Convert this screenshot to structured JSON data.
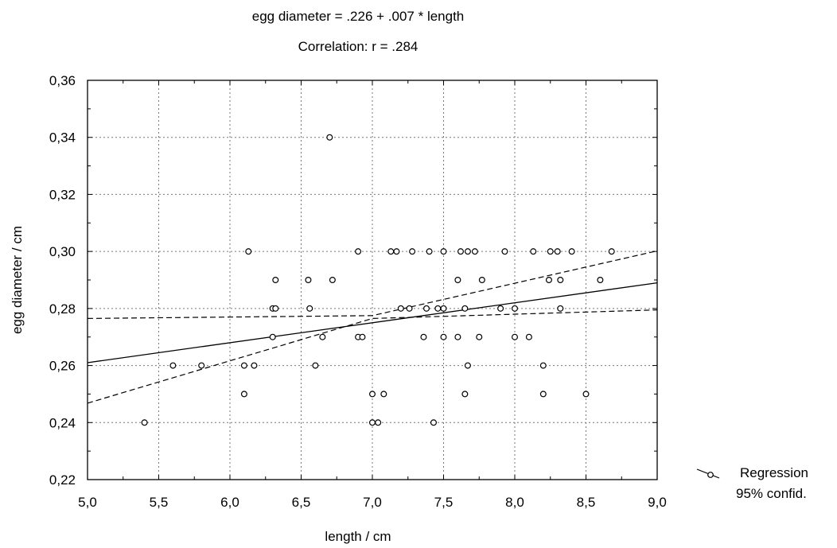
{
  "chart_data": {
    "type": "scatter",
    "title": "egg diameter = .226 + .007 * length",
    "subtitle": "Correlation: r = .284",
    "xlabel": "length / cm",
    "ylabel": "egg diameter / cm",
    "xlim": [
      5.0,
      9.0
    ],
    "ylim": [
      0.22,
      0.36
    ],
    "x_ticks": [
      "5,0",
      "5,5",
      "6,0",
      "6,5",
      "7,0",
      "7,5",
      "8,0",
      "8,5",
      "9,0"
    ],
    "y_ticks": [
      "0,22",
      "0,24",
      "0,26",
      "0,28",
      "0,30",
      "0,32",
      "0,34",
      "0,36"
    ],
    "grid": true,
    "legend_position": "right",
    "legend": [
      "Regression",
      "95% confid."
    ],
    "regression": {
      "intercept": 0.226,
      "slope": 0.007
    },
    "confidence_band": {
      "x": [
        5.0,
        7.0,
        9.0
      ],
      "upper": [
        0.2765,
        0.2775,
        0.3002
      ],
      "lower": [
        0.2468,
        0.2765,
        0.2795
      ]
    },
    "points": [
      [
        6.7,
        0.34
      ],
      [
        6.13,
        0.3
      ],
      [
        6.9,
        0.3
      ],
      [
        7.13,
        0.3
      ],
      [
        7.17,
        0.3
      ],
      [
        7.28,
        0.3
      ],
      [
        7.4,
        0.3
      ],
      [
        7.5,
        0.3
      ],
      [
        7.62,
        0.3
      ],
      [
        7.67,
        0.3
      ],
      [
        7.72,
        0.3
      ],
      [
        7.93,
        0.3
      ],
      [
        8.13,
        0.3
      ],
      [
        8.25,
        0.3
      ],
      [
        8.3,
        0.3
      ],
      [
        8.4,
        0.3
      ],
      [
        8.68,
        0.3
      ],
      [
        6.32,
        0.29
      ],
      [
        6.55,
        0.29
      ],
      [
        6.72,
        0.29
      ],
      [
        7.6,
        0.29
      ],
      [
        7.77,
        0.29
      ],
      [
        8.24,
        0.29
      ],
      [
        8.32,
        0.29
      ],
      [
        8.6,
        0.29
      ],
      [
        6.3,
        0.28
      ],
      [
        6.32,
        0.28
      ],
      [
        6.56,
        0.28
      ],
      [
        7.2,
        0.28
      ],
      [
        7.26,
        0.28
      ],
      [
        7.38,
        0.28
      ],
      [
        7.46,
        0.28
      ],
      [
        7.5,
        0.28
      ],
      [
        7.65,
        0.28
      ],
      [
        7.9,
        0.28
      ],
      [
        8.0,
        0.28
      ],
      [
        8.32,
        0.28
      ],
      [
        6.3,
        0.27
      ],
      [
        6.65,
        0.27
      ],
      [
        6.9,
        0.27
      ],
      [
        6.93,
        0.27
      ],
      [
        7.36,
        0.27
      ],
      [
        7.5,
        0.27
      ],
      [
        7.6,
        0.27
      ],
      [
        7.75,
        0.27
      ],
      [
        8.0,
        0.27
      ],
      [
        8.1,
        0.27
      ],
      [
        5.6,
        0.26
      ],
      [
        5.8,
        0.26
      ],
      [
        6.1,
        0.26
      ],
      [
        6.17,
        0.26
      ],
      [
        6.6,
        0.26
      ],
      [
        7.67,
        0.26
      ],
      [
        8.2,
        0.26
      ],
      [
        6.1,
        0.25
      ],
      [
        7.0,
        0.25
      ],
      [
        7.08,
        0.25
      ],
      [
        7.65,
        0.25
      ],
      [
        8.2,
        0.25
      ],
      [
        8.5,
        0.25
      ],
      [
        5.4,
        0.24
      ],
      [
        7.0,
        0.24
      ],
      [
        7.04,
        0.24
      ],
      [
        7.43,
        0.24
      ]
    ]
  }
}
